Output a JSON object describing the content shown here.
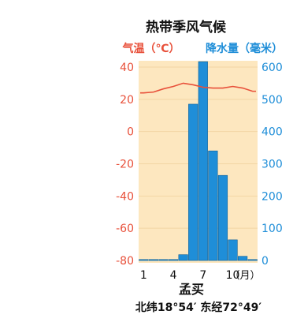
{
  "chart_data": {
    "type": "bar+line",
    "title": "热带季风气候",
    "left_axis": {
      "label": "气温（℃）",
      "range": [
        -80,
        40
      ],
      "ticks": [
        40,
        20,
        0,
        -20,
        -40,
        -60,
        -80
      ],
      "color": "#e8503a"
    },
    "right_axis": {
      "label": "降水量（毫米）",
      "range": [
        0,
        600
      ],
      "ticks": [
        600,
        500,
        400,
        300,
        200,
        100,
        0
      ],
      "color": "#1f8ed8"
    },
    "x": {
      "months": [
        1,
        2,
        3,
        4,
        5,
        6,
        7,
        8,
        9,
        10,
        11,
        12
      ],
      "tick_labels": [
        "1",
        "4",
        "7",
        "10"
      ],
      "tick_months": [
        1,
        4,
        7,
        10
      ],
      "unit": "（月）"
    },
    "temperature": [
      24,
      24.5,
      26.5,
      28,
      30,
      29,
      27.5,
      27,
      27,
      28,
      27,
      25
    ],
    "precipitation": [
      3,
      3,
      3,
      3,
      18,
      485,
      617,
      340,
      264,
      64,
      13,
      3
    ],
    "place": "孟买",
    "coordinates": "北纬18°54′ 东经72°49′",
    "colors": {
      "background": "#fde7bf",
      "bars": "#1f8ed8",
      "bar_edge": "#0d5f99",
      "temp_line": "#e8503a"
    }
  }
}
